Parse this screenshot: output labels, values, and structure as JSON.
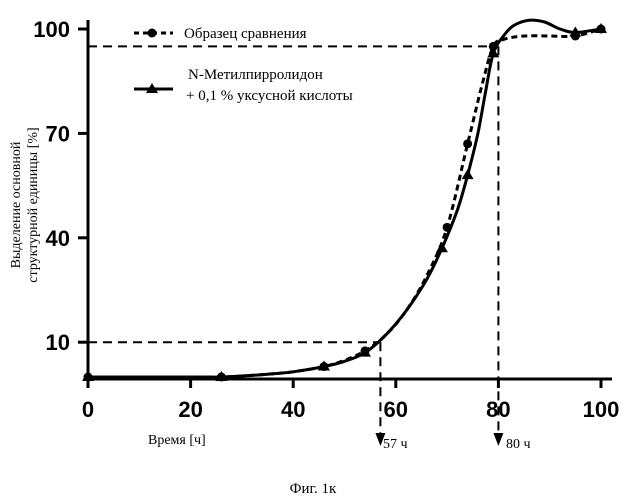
{
  "chart_data": {
    "type": "line",
    "caption": "Фиг. 1к",
    "xlabel": "Время [ч]",
    "ylabel_lines": [
      "Выделение основной",
      "структурной единицы [%]"
    ],
    "xlim": [
      0,
      105
    ],
    "ylim": [
      0,
      100
    ],
    "x_ticks": [
      0,
      20,
      40,
      60,
      80,
      100
    ],
    "x_tick_labels": [
      "0",
      "20",
      "40",
      "60",
      "80",
      "100"
    ],
    "y_ticks": [
      10,
      40,
      70,
      100
    ],
    "y_tick_labels": [
      "10",
      "40",
      "70",
      "100"
    ],
    "series": [
      {
        "name": "Образец сравнения",
        "legend_lines": [
          "Образец сравнения"
        ],
        "style": "dashed",
        "marker": "circle",
        "points": [
          [
            0,
            0
          ],
          [
            26,
            0
          ],
          [
            46,
            3
          ],
          [
            54,
            7.5
          ],
          [
            70,
            43
          ],
          [
            74,
            67
          ],
          [
            79,
            95
          ],
          [
            95,
            98
          ],
          [
            100,
            100
          ]
        ],
        "curve": [
          [
            0,
            0
          ],
          [
            10,
            0
          ],
          [
            20,
            0
          ],
          [
            26,
            0
          ],
          [
            30,
            0.3
          ],
          [
            35,
            0.8
          ],
          [
            40,
            1.5
          ],
          [
            46,
            3
          ],
          [
            50,
            4.8
          ],
          [
            54,
            7.5
          ],
          [
            58,
            12
          ],
          [
            62,
            19
          ],
          [
            66,
            29
          ],
          [
            70,
            43
          ],
          [
            74,
            67
          ],
          [
            77,
            85
          ],
          [
            79,
            95
          ],
          [
            81,
            97
          ],
          [
            85,
            98
          ],
          [
            90,
            98
          ],
          [
            95,
            98
          ],
          [
            100,
            100
          ]
        ]
      },
      {
        "name": "N-Метилпирролидон + 0,1 % уксусной кислоты",
        "legend_lines": [
          "N-Метилпирролидон",
          "+ 0,1 % уксусной кислоты"
        ],
        "style": "solid",
        "marker": "triangle",
        "points": [
          [
            0,
            0
          ],
          [
            26,
            0
          ],
          [
            46,
            3
          ],
          [
            54,
            7
          ],
          [
            69,
            37
          ],
          [
            74,
            58
          ],
          [
            79,
            93
          ],
          [
            95,
            99
          ],
          [
            100,
            100
          ]
        ],
        "curve": [
          [
            0,
            0
          ],
          [
            10,
            0
          ],
          [
            20,
            0
          ],
          [
            26,
            0
          ],
          [
            30,
            0.3
          ],
          [
            35,
            0.8
          ],
          [
            40,
            1.5
          ],
          [
            46,
            3
          ],
          [
            50,
            4.5
          ],
          [
            54,
            7
          ],
          [
            58,
            12
          ],
          [
            62,
            19
          ],
          [
            66,
            28
          ],
          [
            69,
            37
          ],
          [
            72,
            48
          ],
          [
            74,
            58
          ],
          [
            76,
            70
          ],
          [
            77.5,
            82
          ],
          [
            79,
            93
          ],
          [
            81,
            98
          ],
          [
            83,
            101
          ],
          [
            86,
            102.5
          ],
          [
            89,
            102
          ],
          [
            92,
            100
          ],
          [
            95,
            99
          ],
          [
            100,
            100
          ]
        ]
      }
    ],
    "reference_lines": [
      {
        "label": "57 ч",
        "x": 57,
        "y": 10
      },
      {
        "label": "80 ч",
        "x": 80,
        "y": 95
      }
    ]
  }
}
